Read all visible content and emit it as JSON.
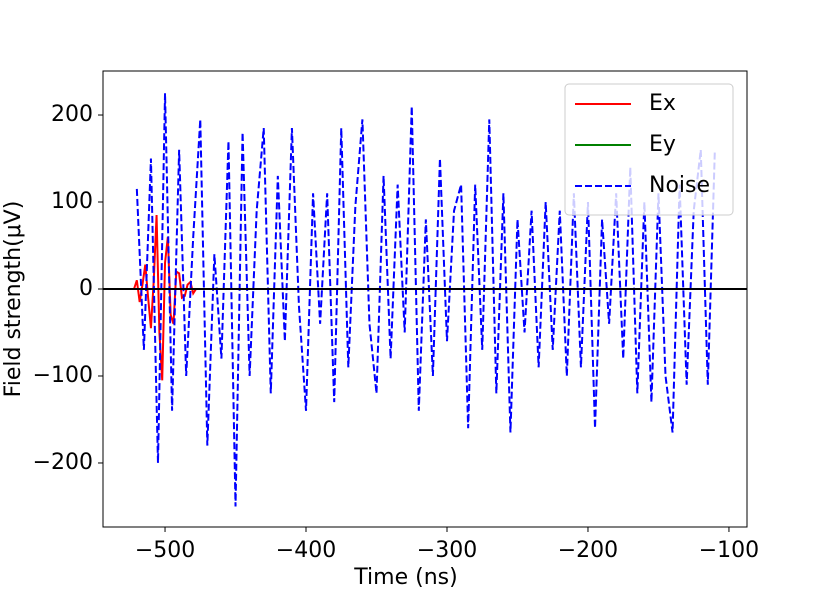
{
  "chart_data": {
    "type": "line",
    "xlabel": "Time (ns)",
    "ylabel": "Field strength(μV)",
    "xlim": [
      -544,
      -87.2
    ],
    "ylim": [
      -273.6,
      250.6
    ],
    "xticks": [
      {
        "value": -500,
        "label": "−500"
      },
      {
        "value": -400,
        "label": "−400"
      },
      {
        "value": -300,
        "label": "−300"
      },
      {
        "value": -200,
        "label": "−200"
      },
      {
        "value": -100,
        "label": "−100"
      }
    ],
    "yticks": [
      {
        "value": -200,
        "label": "−200"
      },
      {
        "value": -100,
        "label": "−100"
      },
      0,
      100,
      200
    ],
    "hline": 0,
    "legend": "upper right",
    "series": [
      {
        "name": "Ex",
        "color": "#ff0000",
        "linestyle": "solid",
        "x": [
          -522,
          -520,
          -518,
          -516,
          -514,
          -512,
          -510,
          -508,
          -506,
          -504,
          -502,
          -500,
          -498,
          -496,
          -494,
          -492,
          -490,
          -488,
          -486,
          -484,
          -482,
          -480,
          -478
        ],
        "values": [
          0,
          10,
          -15,
          5,
          28,
          -10,
          -45,
          10,
          85,
          -50,
          -105,
          30,
          60,
          -30,
          -40,
          20,
          18,
          -10,
          -8,
          5,
          8,
          -5,
          0
        ]
      },
      {
        "name": "Ey",
        "color": "#008000",
        "linestyle": "solid",
        "x": [
          -522,
          -478
        ],
        "values": [
          0,
          0
        ]
      },
      {
        "name": "Noise",
        "color": "#0000ff",
        "linestyle": "dashed",
        "x": [
          -520,
          -515,
          -510,
          -505,
          -500,
          -495,
          -490,
          -485,
          -480,
          -475,
          -470,
          -465,
          -460,
          -455,
          -450,
          -445,
          -440,
          -435,
          -430,
          -425,
          -420,
          -415,
          -410,
          -405,
          -400,
          -395,
          -390,
          -385,
          -380,
          -375,
          -370,
          -365,
          -360,
          -355,
          -350,
          -345,
          -340,
          -335,
          -330,
          -325,
          -320,
          -315,
          -310,
          -305,
          -300,
          -295,
          -290,
          -285,
          -280,
          -275,
          -270,
          -265,
          -260,
          -255,
          -250,
          -245,
          -240,
          -235,
          -230,
          -225,
          -220,
          -215,
          -210,
          -205,
          -200,
          -195,
          -190,
          -185,
          -180,
          -175,
          -170,
          -165,
          -160,
          -155,
          -150,
          -145,
          -140,
          -135,
          -130,
          -125,
          -120,
          -115,
          -110
        ],
        "values": [
          115,
          -70,
          150,
          -200,
          225,
          -140,
          160,
          -100,
          60,
          195,
          -180,
          40,
          -80,
          170,
          -250,
          180,
          -100,
          90,
          185,
          -120,
          130,
          -60,
          185,
          -20,
          -140,
          110,
          -40,
          110,
          -130,
          185,
          -90,
          95,
          195,
          -40,
          -120,
          130,
          -80,
          120,
          -50,
          210,
          -140,
          80,
          -100,
          150,
          -60,
          90,
          120,
          -160,
          120,
          -70,
          195,
          -120,
          110,
          -165,
          80,
          -50,
          90,
          -90,
          100,
          -70,
          90,
          -100,
          110,
          -90,
          100,
          -160,
          80,
          -40,
          110,
          -80,
          140,
          -120,
          100,
          -130,
          110,
          -100,
          -165,
          120,
          -110,
          90,
          160,
          -110,
          160
        ]
      }
    ]
  }
}
